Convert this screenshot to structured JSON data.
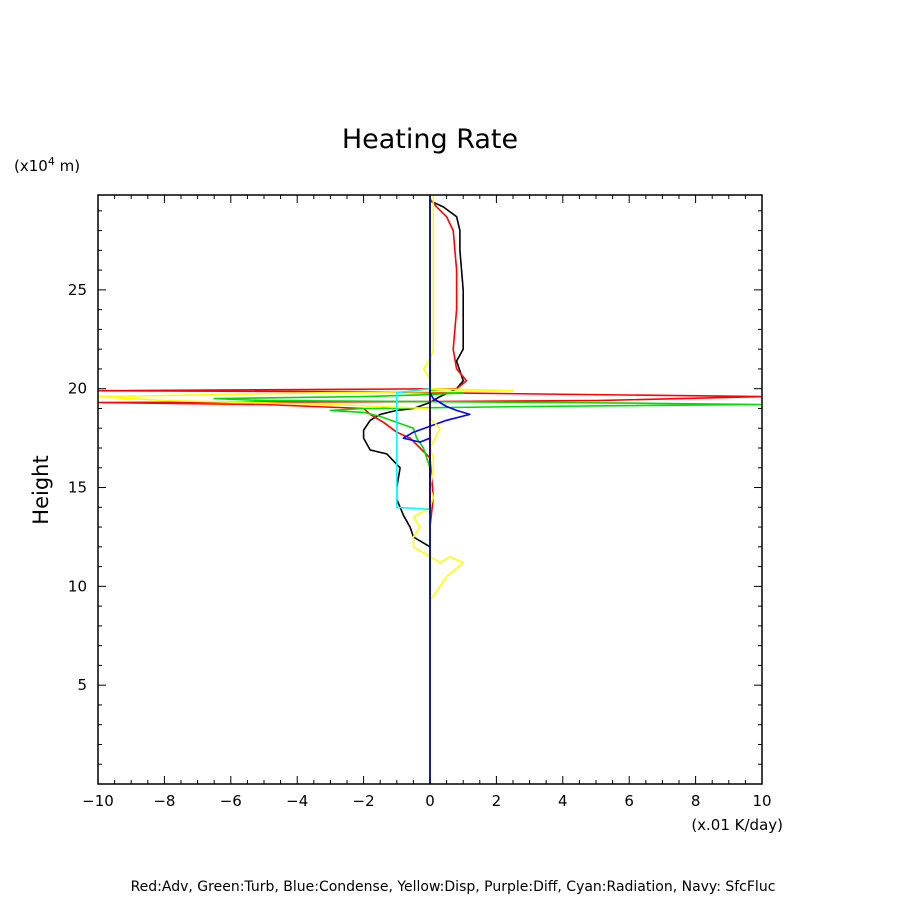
{
  "chart_data": {
    "type": "line",
    "title": "Heating Rate",
    "ylabel": "Height",
    "y_unit_label": "(x10",
    "y_unit_exp": "4",
    "y_unit_suffix": " m)",
    "x_unit_label": "(x.01 K/day)",
    "legend_text": "Red:Adv, Green:Turb, Blue:Condense, Yellow:Disp, Purple:Diff, Cyan:Radiation, Navy: SfcFluc",
    "xlim": [
      -10,
      10
    ],
    "ylim": [
      0,
      29.8
    ],
    "x_ticks": [
      -10,
      -8,
      -6,
      -4,
      -2,
      0,
      2,
      4,
      6,
      8,
      10
    ],
    "x_tick_labels": [
      "−10",
      "−8",
      "−6",
      "−4",
      "−2",
      "0",
      "2",
      "4",
      "6",
      "8",
      "10"
    ],
    "y_ticks": [
      5,
      10,
      15,
      20,
      25
    ],
    "y_tick_labels": [
      "5",
      "10",
      "15",
      "20",
      "25"
    ],
    "series": [
      {
        "color": "#000000",
        "points": [
          [
            0,
            0
          ],
          [
            0,
            8.9
          ],
          [
            0,
            11.3
          ],
          [
            0,
            12
          ],
          [
            -0.5,
            12.5
          ],
          [
            -0.6,
            13
          ],
          [
            -0.8,
            13.6
          ],
          [
            -0.9,
            14
          ],
          [
            -1,
            14.4
          ],
          [
            -1,
            15
          ],
          [
            -0.9,
            16
          ],
          [
            -1.3,
            16.7
          ],
          [
            -1.8,
            16.9
          ],
          [
            -2,
            17.5
          ],
          [
            -2,
            17.9
          ],
          [
            -1.8,
            18.4
          ],
          [
            -1.5,
            18.7
          ],
          [
            -1,
            18.9
          ],
          [
            -0.5,
            19
          ],
          [
            0,
            19.3
          ],
          [
            0.3,
            19.6
          ],
          [
            0.8,
            20
          ],
          [
            1,
            20.4
          ],
          [
            0.9,
            20.9
          ],
          [
            0.8,
            21.4
          ],
          [
            1,
            22
          ],
          [
            1,
            23
          ],
          [
            1,
            25
          ],
          [
            0.9,
            27
          ],
          [
            0.9,
            28
          ],
          [
            0.8,
            28.7
          ],
          [
            0.4,
            29.2
          ],
          [
            0,
            29.5
          ]
        ]
      },
      {
        "color": "#ff0000",
        "points": [
          [
            0,
            0
          ],
          [
            0,
            11
          ],
          [
            0,
            13
          ],
          [
            0.1,
            14.5
          ],
          [
            0,
            16.5
          ],
          [
            -0.3,
            17
          ],
          [
            -0.6,
            17.5
          ],
          [
            -1,
            17.8
          ],
          [
            -1.4,
            18.3
          ],
          [
            -1.8,
            18.7
          ],
          [
            -2,
            19
          ],
          [
            -5,
            19.2
          ],
          [
            -10,
            19.3
          ],
          [
            0,
            19.35
          ],
          [
            5,
            19.4
          ],
          [
            10,
            19.6
          ],
          [
            0,
            19.8
          ],
          [
            -2,
            19.85
          ],
          [
            -10,
            19.9
          ],
          [
            0.8,
            20
          ],
          [
            1.1,
            20.4
          ],
          [
            0.8,
            21
          ],
          [
            0.7,
            22
          ],
          [
            0.8,
            24
          ],
          [
            0.8,
            26
          ],
          [
            0.7,
            28
          ],
          [
            0.5,
            28.7
          ],
          [
            0.2,
            29.2
          ],
          [
            0,
            29.6
          ]
        ]
      },
      {
        "color": "#00dd00",
        "points": [
          [
            0,
            0
          ],
          [
            0,
            16
          ],
          [
            -0.2,
            17
          ],
          [
            -0.4,
            17.5
          ],
          [
            -0.5,
            18
          ],
          [
            -1.5,
            18.6
          ],
          [
            -2,
            18.8
          ],
          [
            -3,
            18.9
          ],
          [
            -2,
            19
          ],
          [
            3,
            19.1
          ],
          [
            10,
            19.2
          ],
          [
            4,
            19.3
          ],
          [
            -5,
            19.4
          ],
          [
            -6.5,
            19.5
          ],
          [
            -2,
            19.6
          ],
          [
            0,
            19.7
          ],
          [
            1,
            19.8
          ],
          [
            0,
            19.9
          ]
        ]
      },
      {
        "color": "#0000ff",
        "points": [
          [
            0,
            0
          ],
          [
            0,
            17.5
          ],
          [
            -0.3,
            17.3
          ],
          [
            -0.8,
            17.5
          ],
          [
            -0.5,
            17.8
          ],
          [
            0,
            18.1
          ],
          [
            0.5,
            18.4
          ],
          [
            1.2,
            18.7
          ],
          [
            0.8,
            18.9
          ],
          [
            0.5,
            19.1
          ],
          [
            0.1,
            19.5
          ],
          [
            0,
            19.8
          ],
          [
            0,
            29.8
          ]
        ]
      },
      {
        "color": "#ffff00",
        "points": [
          [
            0,
            0
          ],
          [
            0,
            9.3
          ],
          [
            0.3,
            10
          ],
          [
            0.5,
            10.5
          ],
          [
            1,
            11.2
          ],
          [
            0.6,
            11.5
          ],
          [
            0.3,
            11.2
          ],
          [
            0,
            11.5
          ],
          [
            -0.5,
            12
          ],
          [
            -0.5,
            12.5
          ],
          [
            -0.3,
            13
          ],
          [
            -0.5,
            13.5
          ],
          [
            0,
            14
          ],
          [
            0.1,
            14.5
          ],
          [
            0,
            15
          ],
          [
            0.1,
            16
          ],
          [
            0.1,
            16.5
          ],
          [
            0,
            17
          ],
          [
            0.3,
            18
          ],
          [
            0,
            18.5
          ],
          [
            0,
            19
          ],
          [
            -3,
            19.2
          ],
          [
            -8,
            19.4
          ],
          [
            -10,
            19.6
          ],
          [
            -3,
            19.8
          ],
          [
            2.5,
            19.9
          ],
          [
            0,
            20
          ],
          [
            0,
            20.5
          ],
          [
            -0.2,
            21
          ],
          [
            0,
            21.5
          ],
          [
            0.1,
            22
          ],
          [
            0.1,
            24
          ],
          [
            0.1,
            26
          ],
          [
            0.1,
            28
          ],
          [
            0.1,
            29
          ],
          [
            0.1,
            29.8
          ]
        ]
      },
      {
        "color": "#8b0000",
        "points": [
          [
            0,
            0
          ],
          [
            0,
            11.3
          ],
          [
            0,
            17.5
          ],
          [
            0,
            29.6
          ]
        ]
      },
      {
        "color": "#00ffff",
        "points": [
          [
            0,
            0
          ],
          [
            0,
            13.9
          ],
          [
            -1,
            14
          ],
          [
            -1,
            19.8
          ],
          [
            0,
            20
          ],
          [
            0,
            29.8
          ]
        ]
      },
      {
        "color": "#000080",
        "points": [
          [
            0,
            0
          ],
          [
            0,
            29.8
          ]
        ]
      }
    ]
  }
}
